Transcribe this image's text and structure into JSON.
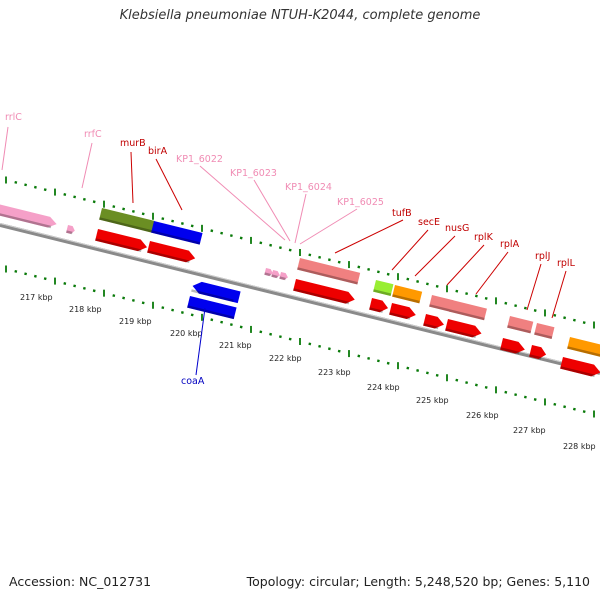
{
  "title": "Klebsiella pneumoniae NTUH-K2044, complete genome",
  "footer": {
    "accession": "Accession: NC_012731",
    "summary": "Topology: circular; Length: 5,248,520 bp; Genes: 5,110"
  },
  "colors": {
    "backbone": "#909090",
    "tick": "#0a7a0a",
    "label_dark": "#c00000",
    "label_light": "#f08cb4",
    "label_blue": "#0000c0",
    "label_mid": "#e87090"
  },
  "scale_labels": [
    "217 kbp",
    "218 kbp",
    "219 kbp",
    "220 kbp",
    "221 kbp",
    "222 kbp",
    "223 kbp",
    "224 kbp",
    "225 kbp",
    "226 kbp",
    "227 kbp",
    "228 kbp"
  ],
  "gene_labels": [
    {
      "text": "rrlC",
      "color": "light"
    },
    {
      "text": "rrfC",
      "color": "light"
    },
    {
      "text": "murB",
      "color": "dark"
    },
    {
      "text": "birA",
      "color": "dark"
    },
    {
      "text": "KP1_6022",
      "color": "light"
    },
    {
      "text": "KP1_6023",
      "color": "light"
    },
    {
      "text": "KP1_6024",
      "color": "light"
    },
    {
      "text": "KP1_6025",
      "color": "light"
    },
    {
      "text": "tufB",
      "color": "dark"
    },
    {
      "text": "secE",
      "color": "dark"
    },
    {
      "text": "nusG",
      "color": "dark"
    },
    {
      "text": "rplK",
      "color": "dark"
    },
    {
      "text": "rplA",
      "color": "dark"
    },
    {
      "text": "rplJ",
      "color": "dark"
    },
    {
      "text": "rplL",
      "color": "dark"
    },
    {
      "text": "coaA",
      "color": "blue"
    }
  ]
}
